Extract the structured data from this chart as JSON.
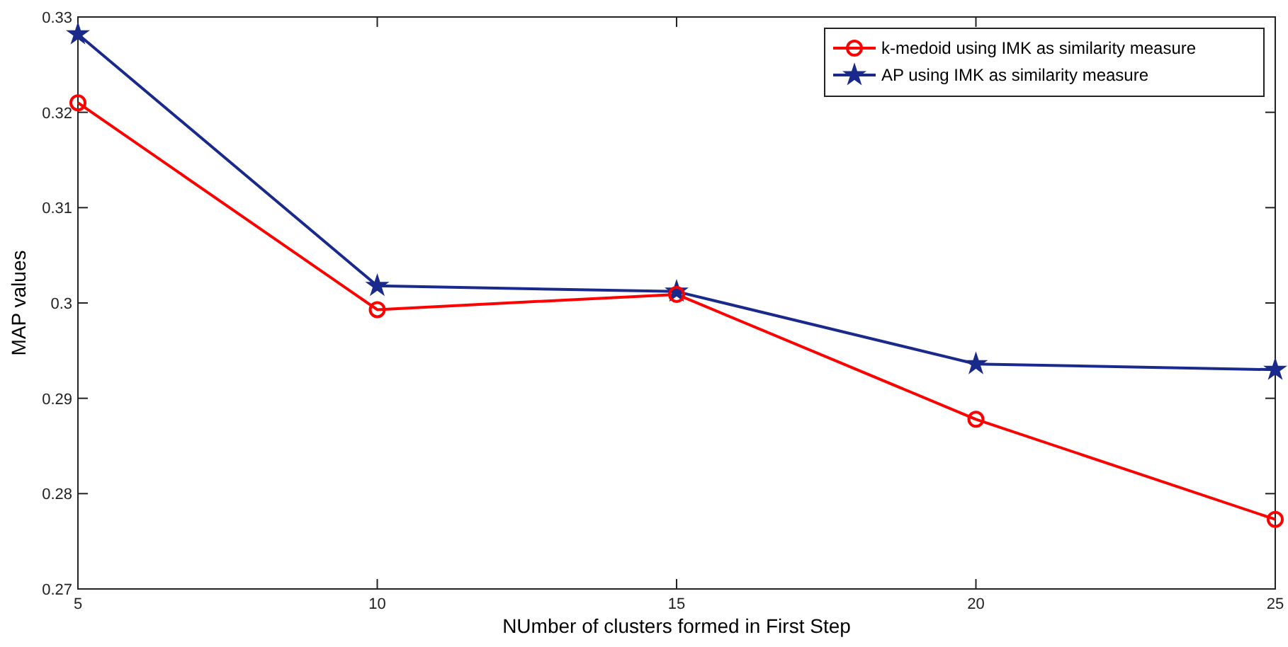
{
  "chart_data": {
    "type": "line",
    "xlabel": "NUmber of clusters formed in First Step",
    "ylabel": "MAP values",
    "x": [
      5,
      10,
      15,
      20,
      25
    ],
    "xlim": [
      5,
      25
    ],
    "xticks": [
      5,
      10,
      15,
      20,
      25
    ],
    "ylim": [
      0.27,
      0.33
    ],
    "yticks": [
      0.27,
      0.28,
      0.29,
      0.3,
      0.31,
      0.32,
      0.33
    ],
    "grid": false,
    "legend": "top right",
    "series": [
      {
        "name": "k-medoid using IMK as similarity measure",
        "color": "#ff0000",
        "marker": "circle",
        "values": [
          0.321,
          0.2993,
          0.3009,
          0.2878,
          0.2773
        ]
      },
      {
        "name": "AP using IMK as similarity measure",
        "color": "#1a2a8c",
        "marker": "star",
        "values": [
          0.3282,
          0.3018,
          0.3012,
          0.2936,
          0.293
        ]
      }
    ]
  }
}
